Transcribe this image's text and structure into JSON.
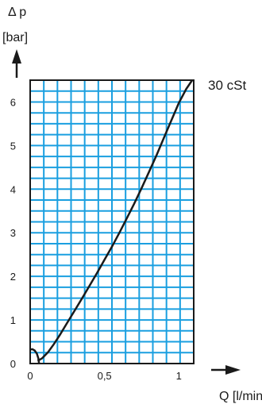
{
  "chart_data": {
    "type": "line",
    "title": "",
    "ylabel_symbol": "Δ p",
    "ylabel_unit": "[bar]",
    "xlabel": "Q [l/min]",
    "xlim": [
      0,
      1.1
    ],
    "ylim": [
      0,
      6.5
    ],
    "x_ticks": [
      0,
      0.5,
      1
    ],
    "x_tick_labels": [
      "0",
      "0,5",
      "1"
    ],
    "y_ticks": [
      0,
      1,
      2,
      3,
      4,
      5,
      6
    ],
    "y_tick_labels": [
      "0",
      "1",
      "2",
      "3",
      "4",
      "5",
      "6"
    ],
    "grid": true,
    "grid_color": "#1a9fe0",
    "curve_color": "#1a1a1a",
    "series": [
      {
        "name": "30 cSt",
        "x": [
          0.05,
          0.08,
          0.12,
          0.16,
          0.2,
          0.25,
          0.3,
          0.35,
          0.4,
          0.45,
          0.5,
          0.55,
          0.6,
          0.65,
          0.7,
          0.75,
          0.8,
          0.85,
          0.9,
          0.95,
          1.0,
          1.05,
          1.09
        ],
        "y": [
          0.06,
          0.12,
          0.26,
          0.45,
          0.66,
          0.94,
          1.22,
          1.5,
          1.79,
          2.08,
          2.38,
          2.68,
          3.0,
          3.33,
          3.67,
          4.03,
          4.4,
          4.78,
          5.18,
          5.58,
          5.98,
          6.3,
          6.5
        ]
      }
    ],
    "small_arc": {
      "x": [
        0,
        0.015,
        0.03,
        0.045,
        0.055,
        0.06
      ],
      "y": [
        0.32,
        0.33,
        0.3,
        0.23,
        0.12,
        0
      ]
    }
  }
}
